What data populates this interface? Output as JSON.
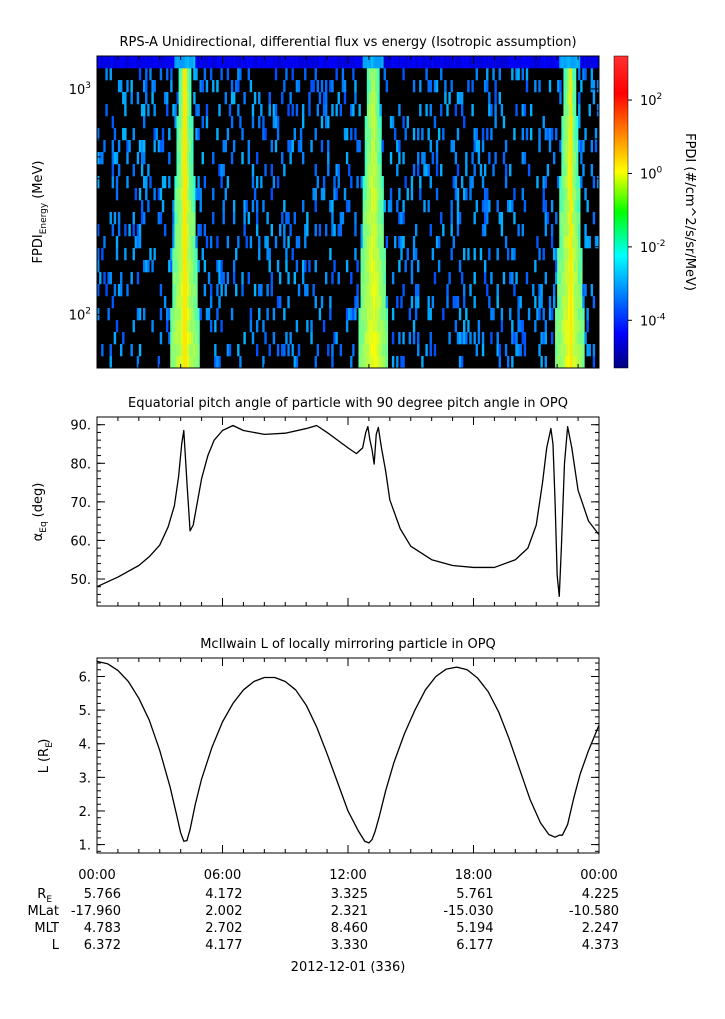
{
  "chart_data": [
    {
      "type": "heatmap",
      "title": "RPS-A Unidirectional, differential flux vs energy (Isotropic assumption)",
      "ylabel_main": "FPDI",
      "ylabel_sub": "Energy",
      "ylabel_unit": "(MeV)",
      "yscale": "log",
      "ylim": [
        58,
        1400
      ],
      "yticks": [
        {
          "value": 100,
          "base": "10",
          "exp": "2"
        },
        {
          "value": 1000,
          "base": "10",
          "exp": "3"
        }
      ],
      "colorbar": {
        "label": "FPDI (#/cm^2/s/sr/MeV)",
        "scale": "log",
        "range_exp": [
          -5.3,
          3.2
        ],
        "ticks": [
          {
            "exp": -4,
            "base": "10",
            "label": "-4"
          },
          {
            "exp": -2,
            "base": "10",
            "label": "-2"
          },
          {
            "exp": 0,
            "base": "10",
            "label": "0"
          },
          {
            "exp": 2,
            "base": "10",
            "label": "2"
          }
        ]
      },
      "bright_bands_hours": [
        4.2,
        13.2,
        22.6
      ]
    },
    {
      "type": "line",
      "title": "Equatorial pitch angle of particle with 90 degree pitch angle in OPQ",
      "ylabel_main": "α",
      "ylabel_sub": "Eq",
      "ylabel_unit": "(deg)",
      "ylim": [
        43,
        92
      ],
      "yticks": [
        "50.",
        "60.",
        "70.",
        "80.",
        "90."
      ],
      "series": [
        {
          "x": [
            0,
            1,
            2,
            2.5,
            3,
            3.4,
            3.7,
            3.9,
            4.05,
            4.15,
            4.3,
            4.45,
            4.6,
            4.8,
            5.0,
            5.3,
            5.6,
            6.0,
            6.5,
            7.0,
            8.0,
            9.0,
            10.0,
            10.5,
            11.0,
            11.5,
            12.0,
            12.4,
            12.7,
            12.85,
            12.95,
            13.05,
            13.15,
            13.25,
            13.35,
            13.45,
            13.6,
            13.8,
            14.0,
            14.5,
            15.0,
            16.0,
            17.0,
            18.0,
            19.0,
            20.0,
            20.6,
            21.0,
            21.3,
            21.5,
            21.7,
            21.8,
            21.9,
            22.0,
            22.1,
            22.2,
            22.35,
            22.5,
            22.7,
            23.0,
            23.5,
            24.0
          ],
          "y": [
            48,
            50.5,
            53.5,
            55.8,
            58.8,
            63.5,
            69,
            76.5,
            85,
            88.5,
            75,
            62.5,
            64,
            70,
            76,
            82,
            86,
            88.5,
            89.8,
            88.5,
            87.5,
            87.8,
            89,
            89.8,
            88,
            86,
            84,
            82.5,
            84,
            88,
            89.5,
            86,
            83.5,
            79.8,
            87.5,
            89.3,
            84,
            78,
            70.5,
            63,
            58.5,
            55,
            53.5,
            53,
            53,
            55,
            58,
            64,
            75,
            84,
            89,
            85,
            70,
            51,
            45.5,
            58,
            80,
            89.5,
            84,
            73,
            65,
            61.5
          ]
        }
      ]
    },
    {
      "type": "line",
      "title": "McIlwain L of locally mirroring particle in OPQ",
      "ylabel_main": "L",
      "ylabel_sub": "E",
      "ylabel_unit": "(R )",
      "ylim": [
        0.75,
        6.55
      ],
      "yticks": [
        "1.",
        "2.",
        "3.",
        "4.",
        "5.",
        "6."
      ],
      "series": [
        {
          "x": [
            0,
            0.5,
            1,
            1.5,
            2,
            2.5,
            3,
            3.5,
            3.8,
            4.0,
            4.15,
            4.3,
            4.45,
            4.7,
            5.0,
            5.5,
            6.0,
            6.5,
            7.0,
            7.5,
            8.0,
            8.5,
            9.0,
            9.5,
            10.0,
            10.5,
            11.0,
            11.5,
            12.0,
            12.5,
            12.8,
            13.0,
            13.15,
            13.3,
            13.5,
            13.8,
            14.2,
            14.7,
            15.2,
            15.7,
            16.2,
            16.7,
            17.2,
            17.7,
            18.2,
            18.7,
            19.2,
            19.7,
            20.2,
            20.7,
            21.2,
            21.6,
            21.9,
            22.1,
            22.25,
            22.5,
            22.8,
            23.1,
            23.5,
            24.0
          ],
          "y": [
            6.45,
            6.38,
            6.18,
            5.85,
            5.35,
            4.7,
            3.8,
            2.7,
            1.9,
            1.35,
            1.1,
            1.12,
            1.45,
            2.2,
            2.95,
            3.9,
            4.65,
            5.2,
            5.6,
            5.85,
            5.97,
            5.97,
            5.85,
            5.6,
            5.15,
            4.5,
            3.7,
            2.85,
            2.0,
            1.4,
            1.1,
            1.05,
            1.15,
            1.4,
            1.85,
            2.6,
            3.45,
            4.3,
            5.0,
            5.6,
            6.0,
            6.22,
            6.28,
            6.2,
            5.95,
            5.55,
            4.95,
            4.15,
            3.25,
            2.35,
            1.65,
            1.3,
            1.22,
            1.28,
            1.28,
            1.6,
            2.4,
            3.1,
            3.8,
            4.55
          ]
        }
      ]
    }
  ],
  "time_axis": {
    "tick_labels": [
      "00:00",
      "06:00",
      "12:00",
      "18:00",
      "00:00"
    ],
    "date_label": "2012-12-01 (336)",
    "rows": [
      {
        "label": "R",
        "sub": "E",
        "values": [
          "5.766",
          "4.172",
          "3.325",
          "5.761",
          "4.225"
        ]
      },
      {
        "label": "MLat",
        "sub": "",
        "values": [
          "-17.960",
          "2.002",
          "2.321",
          "-15.030",
          "-10.580"
        ]
      },
      {
        "label": "MLT",
        "sub": "",
        "values": [
          "4.783",
          "2.702",
          "8.460",
          "5.194",
          "2.247"
        ]
      },
      {
        "label": "L",
        "sub": "",
        "values": [
          "6.372",
          "4.177",
          "3.330",
          "6.177",
          "4.373"
        ]
      }
    ]
  }
}
